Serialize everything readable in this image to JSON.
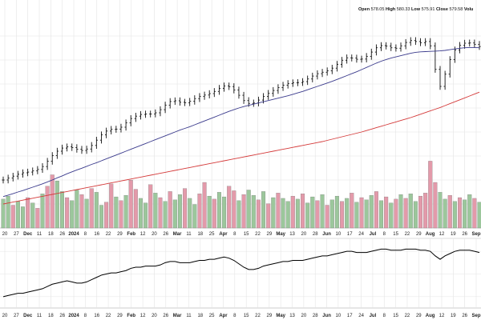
{
  "chart_data": {
    "type": "line",
    "title": "",
    "ohlc_header": [
      {
        "key": "Open",
        "value": "578.05"
      },
      {
        "key": "High",
        "value": "580.33"
      },
      {
        "key": "Low",
        "value": "575.91"
      },
      {
        "key": "Close",
        "value": "579.58"
      },
      {
        "key": "Volu",
        "value": ""
      }
    ],
    "x_tick_labels": [
      {
        "label": "20",
        "bold": false
      },
      {
        "label": "27",
        "bold": false
      },
      {
        "label": "Dec",
        "bold": true
      },
      {
        "label": "11",
        "bold": false
      },
      {
        "label": "18",
        "bold": false
      },
      {
        "label": "26",
        "bold": false
      },
      {
        "label": "2024",
        "bold": true
      },
      {
        "label": "8",
        "bold": false
      },
      {
        "label": "16",
        "bold": false
      },
      {
        "label": "22",
        "bold": false
      },
      {
        "label": "29",
        "bold": false
      },
      {
        "label": "Feb",
        "bold": true
      },
      {
        "label": "12",
        "bold": false
      },
      {
        "label": "20",
        "bold": false
      },
      {
        "label": "26",
        "bold": false
      },
      {
        "label": "Mar",
        "bold": true
      },
      {
        "label": "11",
        "bold": false
      },
      {
        "label": "18",
        "bold": false
      },
      {
        "label": "25",
        "bold": false
      },
      {
        "label": "Apr",
        "bold": true
      },
      {
        "label": "8",
        "bold": false
      },
      {
        "label": "15",
        "bold": false
      },
      {
        "label": "22",
        "bold": false
      },
      {
        "label": "29",
        "bold": false
      },
      {
        "label": "May",
        "bold": true
      },
      {
        "label": "13",
        "bold": false
      },
      {
        "label": "20",
        "bold": false
      },
      {
        "label": "28",
        "bold": false
      },
      {
        "label": "Jun",
        "bold": true
      },
      {
        "label": "10",
        "bold": false
      },
      {
        "label": "17",
        "bold": false
      },
      {
        "label": "24",
        "bold": false
      },
      {
        "label": "Jul",
        "bold": true
      },
      {
        "label": "8",
        "bold": false
      },
      {
        "label": "15",
        "bold": false
      },
      {
        "label": "22",
        "bold": false
      },
      {
        "label": "29",
        "bold": false
      },
      {
        "label": "Aug",
        "bold": true
      },
      {
        "label": "12",
        "bold": false
      },
      {
        "label": "19",
        "bold": false
      },
      {
        "label": "26",
        "bold": false
      },
      {
        "label": "Sep",
        "bold": true
      }
    ],
    "x_tick_labels_lower": [
      {
        "label": "20",
        "bold": false
      },
      {
        "label": "27",
        "bold": false
      },
      {
        "label": "Dec",
        "bold": true
      },
      {
        "label": "11",
        "bold": false
      },
      {
        "label": "18",
        "bold": false
      },
      {
        "label": "26",
        "bold": false
      },
      {
        "label": "2024",
        "bold": true
      },
      {
        "label": "8",
        "bold": false
      },
      {
        "label": "16",
        "bold": false
      },
      {
        "label": "22",
        "bold": false
      },
      {
        "label": "29",
        "bold": false
      },
      {
        "label": "Feb",
        "bold": true
      },
      {
        "label": "12",
        "bold": false
      },
      {
        "label": "20",
        "bold": false
      },
      {
        "label": "26",
        "bold": false
      },
      {
        "label": "Mar",
        "bold": true
      },
      {
        "label": "11",
        "bold": false
      },
      {
        "label": "18",
        "bold": false
      },
      {
        "label": "25",
        "bold": false
      },
      {
        "label": "Apr",
        "bold": true
      },
      {
        "label": "8",
        "bold": false
      },
      {
        "label": "15",
        "bold": false
      },
      {
        "label": "22",
        "bold": false
      },
      {
        "label": "29",
        "bold": false
      },
      {
        "label": "May",
        "bold": true
      },
      {
        "label": "13",
        "bold": false
      },
      {
        "label": "20",
        "bold": false
      },
      {
        "label": "28",
        "bold": false
      },
      {
        "label": "Jun",
        "bold": true
      },
      {
        "label": "10",
        "bold": false
      },
      {
        "label": "17",
        "bold": false
      },
      {
        "label": "24",
        "bold": false
      },
      {
        "label": "Jul",
        "bold": true
      },
      {
        "label": "8",
        "bold": false
      },
      {
        "label": "15",
        "bold": false
      },
      {
        "label": "22",
        "bold": false
      },
      {
        "label": "29",
        "bold": false
      },
      {
        "label": "Aug",
        "bold": true
      },
      {
        "label": "12",
        "bold": false
      },
      {
        "label": "19",
        "bold": false
      },
      {
        "label": "26",
        "bold": false
      },
      {
        "label": "Sep",
        "bold": true
      }
    ],
    "grid": true,
    "colors": {
      "price_bar": "#111111",
      "ma_short": "#3a3a8c",
      "ma_long": "#d43a3a",
      "volume_up": "#9cc79c",
      "volume_down": "#e39aaa",
      "indicator_line": "#000000",
      "grid": "#e4e4e4"
    },
    "price_close": [
      100.0,
      100.8,
      101.6,
      102.4,
      103.0,
      103.3,
      103.8,
      104.4,
      105.6,
      107.8,
      110.2,
      112.0,
      113.3,
      113.8,
      113.5,
      112.8,
      112.3,
      112.9,
      114.4,
      116.6,
      118.8,
      120.4,
      121.1,
      121.2,
      122.0,
      123.8,
      125.6,
      126.6,
      127.3,
      127.5,
      127.5,
      128.0,
      129.3,
      131.2,
      132.7,
      133.0,
      132.4,
      132.2,
      132.8,
      133.9,
      134.8,
      135.4,
      136.0,
      136.9,
      138.2,
      139.2,
      138.9,
      137.5,
      135.3,
      133.1,
      131.9,
      132.1,
      133.3,
      134.8,
      136.1,
      137.3,
      138.5,
      139.5,
      140.2,
      140.5,
      140.6,
      141.0,
      142.1,
      143.3,
      144.3,
      144.9,
      145.5,
      146.6,
      148.2,
      149.9,
      150.9,
      150.8,
      150.3,
      150.4,
      151.5,
      153.3,
      155.1,
      156.0,
      155.8,
      155.1,
      154.9,
      155.9,
      157.3,
      158.1,
      157.7,
      157.2,
      157.7,
      155.9,
      146.1,
      139.0,
      144.1,
      150.2,
      154.2,
      156.1,
      157.0,
      157.1,
      156.5,
      155.6
    ],
    "ma_short": [
      93.1,
      93.7,
      94.3,
      95.0,
      95.6,
      96.3,
      97.0,
      97.7,
      98.4,
      99.2,
      100.0,
      100.9,
      101.7,
      102.6,
      103.4,
      104.2,
      104.9,
      105.7,
      106.5,
      107.2,
      108.0,
      108.8,
      109.6,
      110.4,
      111.2,
      112.0,
      112.8,
      113.6,
      114.4,
      115.2,
      116.0,
      116.8,
      117.6,
      118.4,
      119.2,
      120.0,
      120.8,
      121.5,
      122.2,
      123.0,
      123.8,
      124.6,
      125.4,
      126.2,
      127.0,
      127.8,
      128.6,
      129.3,
      130.0,
      130.6,
      131.1,
      131.6,
      132.1,
      132.6,
      133.1,
      133.6,
      134.1,
      134.6,
      135.1,
      135.7,
      136.3,
      136.9,
      137.6,
      138.3,
      139.0,
      139.7,
      140.4,
      141.1,
      141.9,
      142.7,
      143.5,
      144.3,
      145.1,
      146.0,
      146.9,
      147.8,
      148.7,
      149.5,
      150.2,
      150.8,
      151.3,
      151.8,
      152.3,
      152.8,
      153.2,
      153.4,
      153.5,
      153.6,
      153.7,
      153.8,
      154.0,
      154.3,
      154.6,
      154.9,
      155.1,
      155.2,
      155.2,
      155.1
    ],
    "ma_long": [
      90.0,
      90.4,
      90.8,
      91.2,
      91.6,
      92.0,
      92.4,
      92.8,
      93.2,
      93.6,
      94.0,
      94.4,
      94.8,
      95.2,
      95.6,
      96.0,
      96.4,
      96.8,
      97.2,
      97.6,
      98.0,
      98.4,
      98.8,
      99.2,
      99.6,
      100.0,
      100.4,
      100.8,
      101.2,
      101.6,
      102.0,
      102.4,
      102.8,
      103.2,
      103.6,
      104.0,
      104.4,
      104.8,
      105.2,
      105.6,
      106.0,
      106.4,
      106.8,
      107.2,
      107.6,
      108.0,
      108.4,
      108.8,
      109.2,
      109.6,
      110.0,
      110.4,
      110.8,
      111.2,
      111.6,
      112.0,
      112.4,
      112.8,
      113.2,
      113.6,
      114.0,
      114.4,
      114.8,
      115.2,
      115.6,
      116.0,
      116.5,
      117.0,
      117.5,
      118.0,
      118.5,
      119.0,
      119.5,
      120.0,
      120.6,
      121.2,
      121.8,
      122.4,
      123.0,
      123.6,
      124.2,
      124.8,
      125.4,
      126.0,
      126.7,
      127.4,
      128.1,
      128.8,
      129.5,
      130.2,
      131.0,
      131.8,
      132.6,
      133.4,
      134.2,
      135.0,
      135.8,
      136.6
    ],
    "volume": [
      38,
      42,
      30,
      35,
      28,
      40,
      33,
      26,
      45,
      55,
      70,
      62,
      48,
      40,
      36,
      50,
      44,
      38,
      52,
      47,
      30,
      34,
      58,
      41,
      36,
      43,
      63,
      51,
      39,
      33,
      57,
      46,
      40,
      35,
      48,
      37,
      44,
      52,
      39,
      31,
      45,
      60,
      42,
      38,
      47,
      41,
      55,
      49,
      36,
      44,
      50,
      43,
      37,
      48,
      32,
      40,
      46,
      39,
      35,
      42,
      38,
      45,
      33,
      41,
      36,
      44,
      30,
      37,
      42,
      35,
      39,
      46,
      34,
      40,
      37,
      43,
      48,
      36,
      41,
      33,
      38,
      44,
      39,
      45,
      35,
      42,
      46,
      88,
      60,
      47,
      38,
      43,
      35,
      40,
      37,
      44,
      39,
      34
    ],
    "volume_up": [
      true,
      true,
      false,
      true,
      true,
      false,
      true,
      false,
      true,
      false,
      false,
      true,
      true,
      false,
      true,
      true,
      false,
      true,
      false,
      true,
      true,
      false,
      false,
      true,
      false,
      true,
      false,
      false,
      true,
      true,
      false,
      true,
      false,
      true,
      false,
      true,
      true,
      false,
      true,
      true,
      false,
      false,
      true,
      false,
      true,
      true,
      false,
      false,
      true,
      false,
      true,
      true,
      false,
      true,
      false,
      true,
      false,
      true,
      true,
      false,
      true,
      false,
      true,
      true,
      false,
      true,
      false,
      true,
      true,
      false,
      true,
      false,
      true,
      false,
      true,
      true,
      false,
      true,
      false,
      true,
      false,
      true,
      false,
      true,
      true,
      false,
      false,
      false,
      false,
      true,
      true,
      false,
      true,
      false,
      true,
      true,
      false,
      true
    ],
    "indicator": [
      10,
      11,
      12,
      13,
      13,
      14,
      15,
      16,
      17,
      19,
      21,
      22,
      23,
      24,
      23,
      22,
      22,
      23,
      25,
      27,
      29,
      30,
      31,
      31,
      32,
      33,
      35,
      36,
      36,
      37,
      37,
      37,
      38,
      40,
      41,
      41,
      40,
      40,
      40,
      41,
      42,
      42,
      43,
      43,
      44,
      45,
      44,
      42,
      39,
      36,
      34,
      34,
      35,
      37,
      38,
      39,
      40,
      41,
      41,
      42,
      42,
      42,
      43,
      44,
      45,
      46,
      46,
      47,
      48,
      49,
      50,
      50,
      49,
      49,
      49,
      50,
      51,
      52,
      52,
      51,
      51,
      51,
      52,
      52,
      52,
      51,
      51,
      50,
      46,
      43,
      46,
      48,
      50,
      51,
      51,
      51,
      50,
      49
    ]
  }
}
